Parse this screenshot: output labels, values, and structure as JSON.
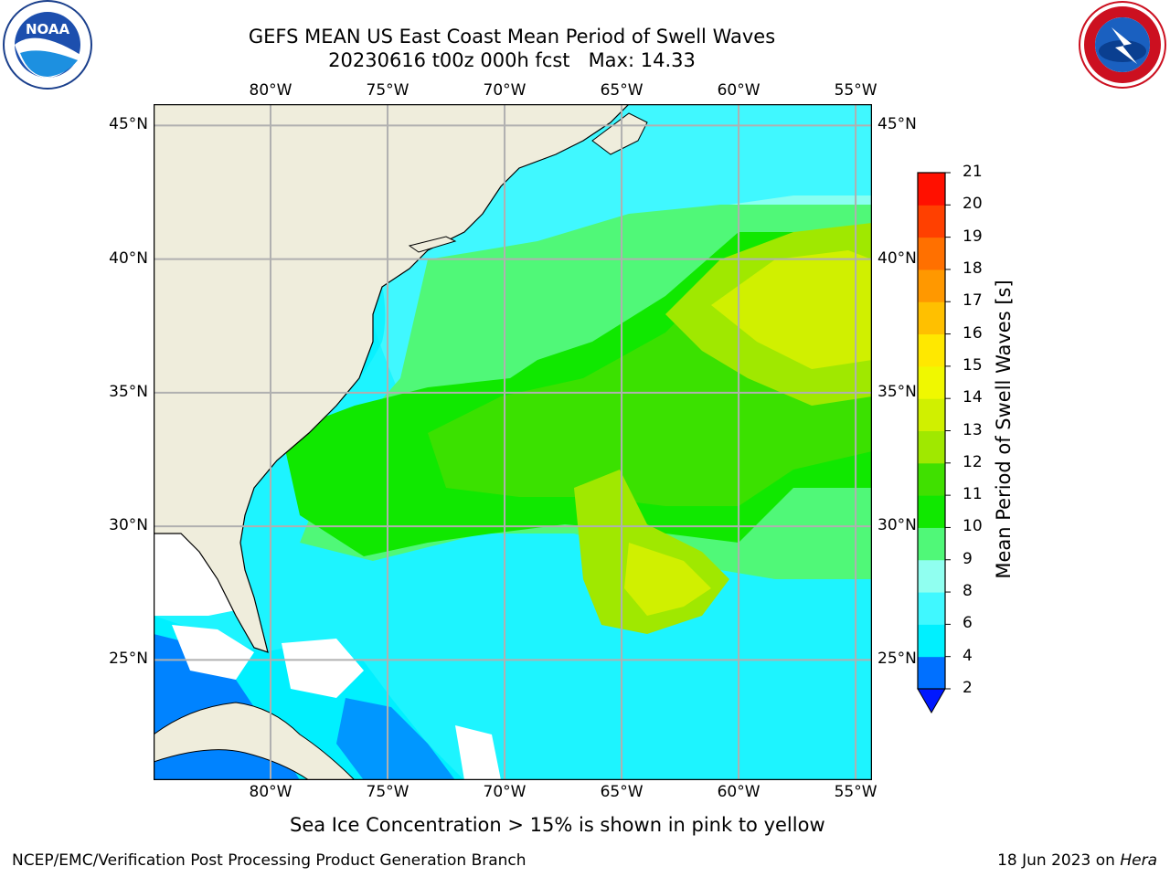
{
  "header": {
    "title_line1": "GEFS MEAN US East Coast Mean Period of Swell Waves",
    "title_line2": "20230616 t00z 000h fcst   Max: 14.33"
  },
  "logos": {
    "noaa": {
      "text": "NOAA",
      "ring_text": "NATIONAL OCEANIC AND ATMOSPHERIC ADMINISTRATION",
      "ring_text_bottom": "U.S. DEPARTMENT OF COMMERCE"
    },
    "nws": {
      "ring_text": "NATIONAL WEATHER SERVICE"
    }
  },
  "map": {
    "lon_ticks": [
      "80°W",
      "75°W",
      "70°W",
      "65°W",
      "60°W",
      "55°W"
    ],
    "lat_ticks": [
      "45°N",
      "40°N",
      "35°N",
      "30°N",
      "25°N"
    ],
    "lon_values": [
      -80,
      -75,
      -70,
      -65,
      -60,
      -55
    ],
    "lat_values": [
      45,
      40,
      35,
      30,
      25
    ],
    "extent": {
      "lon_min": -85,
      "lon_max": -54.3,
      "lat_min": 20.5,
      "lat_max": 45.8
    },
    "land_color": "#efeddc",
    "grid_color": "#b0b0b0"
  },
  "colorbar": {
    "label": "Mean Period of Swell Waves [s]",
    "ticks": [
      "2",
      "4",
      "6",
      "8",
      "9",
      "10",
      "11",
      "12",
      "13",
      "14",
      "15",
      "16",
      "17",
      "18",
      "19",
      "20",
      "21"
    ],
    "colors": [
      "#0070ff",
      "#00f0ff",
      "#40f8ff",
      "#90fff0",
      "#50f878",
      "#10e800",
      "#40e000",
      "#a0e800",
      "#d0f000",
      "#f0f800",
      "#ffe800",
      "#ffc000",
      "#ff9800",
      "#ff7000",
      "#ff4000",
      "#ff1000"
    ],
    "under_color": "#0018ff"
  },
  "caption": "Sea Ice Concentration > 15% is shown in pink to yellow",
  "footer": {
    "left": "NCEP/EMC/Verification Post Processing Product Generation Branch",
    "right_date": "18 Jun 2023 on ",
    "right_host": "Hera"
  }
}
